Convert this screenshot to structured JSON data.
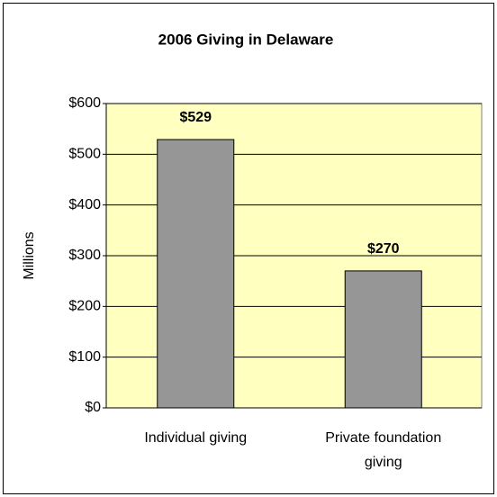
{
  "chart_data": {
    "type": "bar",
    "title": "2006 Giving in Delaware",
    "y_label": "Millions",
    "categories": [
      "Individual giving",
      "Private foundation giving"
    ],
    "values": [
      529,
      270
    ],
    "value_labels": [
      "$529",
      "$270"
    ],
    "color": "#969696",
    "ylim": [
      0,
      600
    ],
    "yticks": [
      {
        "value": 0,
        "label": "$0"
      },
      {
        "value": 100,
        "label": "$100"
      },
      {
        "value": 200,
        "label": "$200"
      },
      {
        "value": 300,
        "label": "$300"
      },
      {
        "value": 400,
        "label": "$400"
      },
      {
        "value": 500,
        "label": "$500"
      },
      {
        "value": 600,
        "label": "$600"
      }
    ],
    "grid": true
  }
}
